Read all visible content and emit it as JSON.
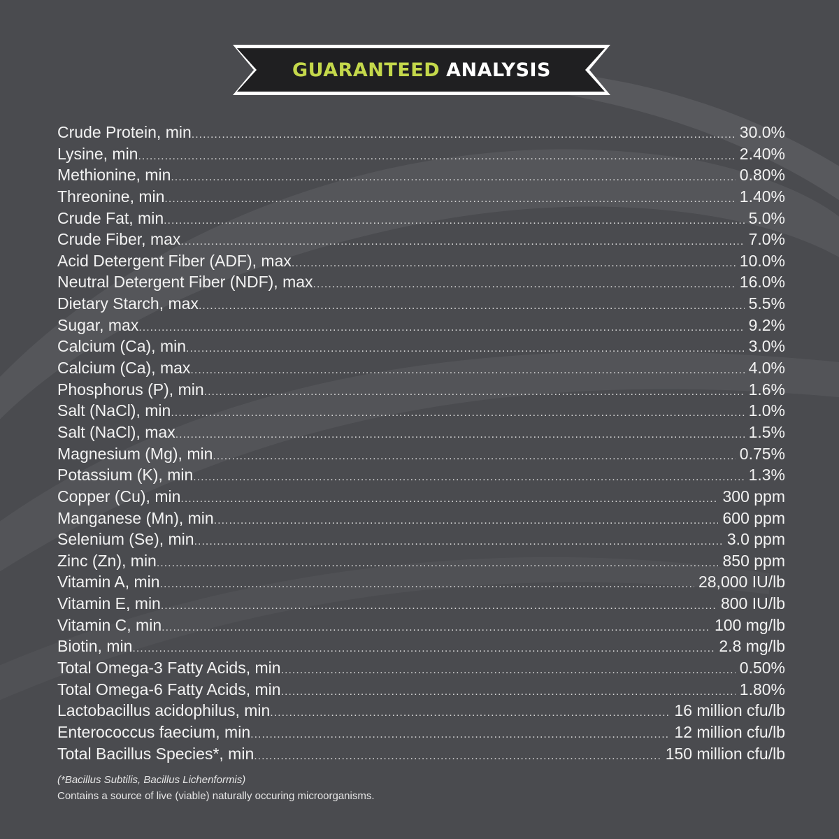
{
  "banner": {
    "title_accent": "GUARANTEED",
    "title_main": "ANALYSIS",
    "accent_color": "#c4d84b"
  },
  "rows": [
    {
      "label": "Crude Protein, min",
      "value": "30.0%"
    },
    {
      "label": "Lysine, min",
      "value": "2.40%"
    },
    {
      "label": "Methionine, min",
      "value": "0.80%"
    },
    {
      "label": "Threonine, min",
      "value": "1.40%"
    },
    {
      "label": "Crude Fat, min",
      "value": "5.0%"
    },
    {
      "label": "Crude Fiber, max",
      "value": "7.0%"
    },
    {
      "label": "Acid Detergent Fiber (ADF), max",
      "value": "10.0%"
    },
    {
      "label": "Neutral Detergent Fiber (NDF), max",
      "value": "16.0%"
    },
    {
      "label": "Dietary Starch, max",
      "value": "5.5%"
    },
    {
      "label": "Sugar, max",
      "value": "9.2%"
    },
    {
      "label": "Calcium (Ca), min",
      "value": "3.0%"
    },
    {
      "label": "Calcium (Ca), max",
      "value": "4.0%"
    },
    {
      "label": "Phosphorus (P), min",
      "value": "1.6%"
    },
    {
      "label": "Salt (NaCl), min",
      "value": "1.0%"
    },
    {
      "label": "Salt (NaCl), max",
      "value": "1.5%"
    },
    {
      "label": "Magnesium (Mg), min",
      "value": "0.75%"
    },
    {
      "label": "Potassium (K), min",
      "value": "1.3%"
    },
    {
      "label": "Copper (Cu), min",
      "value": "300 ppm"
    },
    {
      "label": "Manganese (Mn), min",
      "value": "600 ppm"
    },
    {
      "label": "Selenium (Se), min",
      "value": "3.0 ppm"
    },
    {
      "label": "Zinc (Zn), min",
      "value": "850 ppm"
    },
    {
      "label": "Vitamin A, min",
      "value": "28,000 IU/lb"
    },
    {
      "label": "Vitamin E, min",
      "value": "800 IU/lb"
    },
    {
      "label": "Vitamin C, min",
      "value": "100 mg/lb"
    },
    {
      "label": "Biotin, min",
      "value": "2.8 mg/lb"
    },
    {
      "label": "Total Omega-3 Fatty Acids, min",
      "value": "0.50%"
    },
    {
      "label": "Total Omega-6 Fatty Acids, min",
      "value": "1.80%"
    },
    {
      "label": "Lactobacillus acidophilus, min",
      "value": "16 million cfu/lb"
    },
    {
      "label": "Enterococcus faecium, min",
      "value": "12 million cfu/lb"
    },
    {
      "label": "Total Bacillus Species*, min",
      "value": "150 million cfu/lb"
    }
  ],
  "footnote": {
    "species_note": "(*Bacillus Subtilis, Bacillus Lichenformis)",
    "statement": "Contains a source of live (viable) naturally occuring microorganisms."
  }
}
